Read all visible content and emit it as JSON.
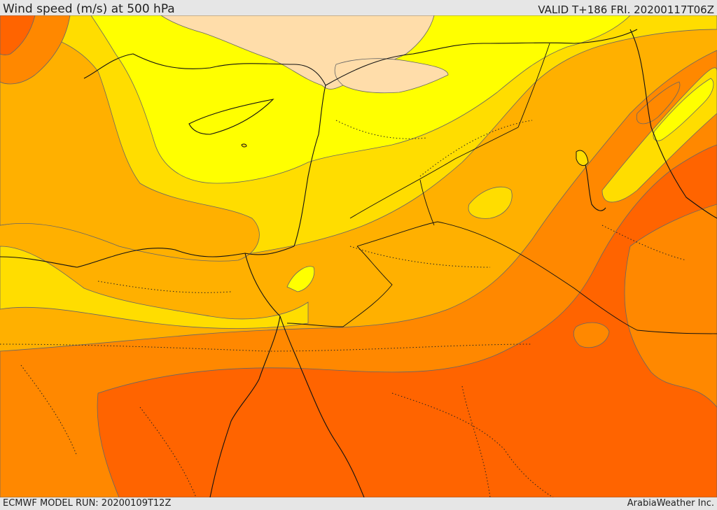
{
  "header": {
    "title": "Wind speed (m/s) at 500 hPa",
    "valid": "VALID T+186 FRI. 20200117T06Z"
  },
  "footer": {
    "model_run": "ECMWF MODEL RUN: 20200109T12Z",
    "credit": "ArabiaWeather Inc."
  },
  "colors": {
    "band_pale": "#ffddaa",
    "band_light_yellow": "#ffff00",
    "band_yellow": "#ffdd00",
    "band_gold": "#ffb000",
    "band_orange": "#ff8800",
    "band_deep_orange": "#ff6400",
    "coast": "#111111",
    "contour": "#666666"
  }
}
